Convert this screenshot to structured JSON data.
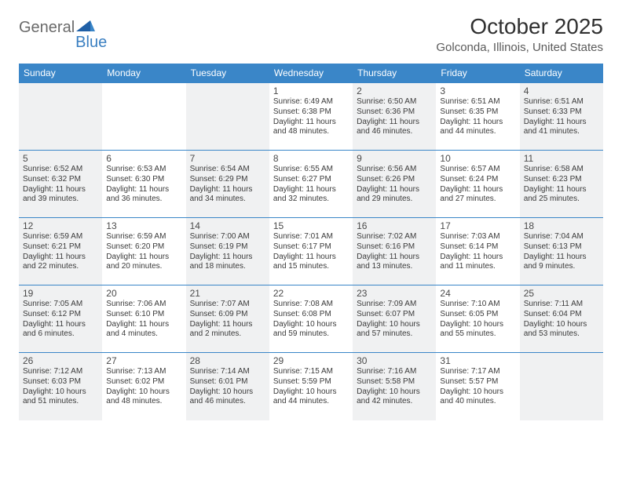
{
  "logo": {
    "text1": "General",
    "text2": "Blue"
  },
  "title": "October 2025",
  "location": "Golconda, Illinois, United States",
  "colors": {
    "header_bg": "#3a86c8",
    "header_text": "#ffffff",
    "shaded_bg": "#f0f1f2",
    "border": "#3a86c8",
    "logo_gray": "#6a6a6a",
    "logo_blue": "#3a7fc1"
  },
  "daysOfWeek": [
    "Sunday",
    "Monday",
    "Tuesday",
    "Wednesday",
    "Thursday",
    "Friday",
    "Saturday"
  ],
  "weeks": [
    [
      {
        "shaded": true
      },
      {
        "shaded": false
      },
      {
        "shaded": true
      },
      {
        "day": "1",
        "sunrise": "Sunrise: 6:49 AM",
        "sunset": "Sunset: 6:38 PM",
        "daylight": "Daylight: 11 hours and 48 minutes.",
        "shaded": false
      },
      {
        "day": "2",
        "sunrise": "Sunrise: 6:50 AM",
        "sunset": "Sunset: 6:36 PM",
        "daylight": "Daylight: 11 hours and 46 minutes.",
        "shaded": true
      },
      {
        "day": "3",
        "sunrise": "Sunrise: 6:51 AM",
        "sunset": "Sunset: 6:35 PM",
        "daylight": "Daylight: 11 hours and 44 minutes.",
        "shaded": false
      },
      {
        "day": "4",
        "sunrise": "Sunrise: 6:51 AM",
        "sunset": "Sunset: 6:33 PM",
        "daylight": "Daylight: 11 hours and 41 minutes.",
        "shaded": true
      }
    ],
    [
      {
        "day": "5",
        "sunrise": "Sunrise: 6:52 AM",
        "sunset": "Sunset: 6:32 PM",
        "daylight": "Daylight: 11 hours and 39 minutes.",
        "shaded": true
      },
      {
        "day": "6",
        "sunrise": "Sunrise: 6:53 AM",
        "sunset": "Sunset: 6:30 PM",
        "daylight": "Daylight: 11 hours and 36 minutes.",
        "shaded": false
      },
      {
        "day": "7",
        "sunrise": "Sunrise: 6:54 AM",
        "sunset": "Sunset: 6:29 PM",
        "daylight": "Daylight: 11 hours and 34 minutes.",
        "shaded": true
      },
      {
        "day": "8",
        "sunrise": "Sunrise: 6:55 AM",
        "sunset": "Sunset: 6:27 PM",
        "daylight": "Daylight: 11 hours and 32 minutes.",
        "shaded": false
      },
      {
        "day": "9",
        "sunrise": "Sunrise: 6:56 AM",
        "sunset": "Sunset: 6:26 PM",
        "daylight": "Daylight: 11 hours and 29 minutes.",
        "shaded": true
      },
      {
        "day": "10",
        "sunrise": "Sunrise: 6:57 AM",
        "sunset": "Sunset: 6:24 PM",
        "daylight": "Daylight: 11 hours and 27 minutes.",
        "shaded": false
      },
      {
        "day": "11",
        "sunrise": "Sunrise: 6:58 AM",
        "sunset": "Sunset: 6:23 PM",
        "daylight": "Daylight: 11 hours and 25 minutes.",
        "shaded": true
      }
    ],
    [
      {
        "day": "12",
        "sunrise": "Sunrise: 6:59 AM",
        "sunset": "Sunset: 6:21 PM",
        "daylight": "Daylight: 11 hours and 22 minutes.",
        "shaded": true
      },
      {
        "day": "13",
        "sunrise": "Sunrise: 6:59 AM",
        "sunset": "Sunset: 6:20 PM",
        "daylight": "Daylight: 11 hours and 20 minutes.",
        "shaded": false
      },
      {
        "day": "14",
        "sunrise": "Sunrise: 7:00 AM",
        "sunset": "Sunset: 6:19 PM",
        "daylight": "Daylight: 11 hours and 18 minutes.",
        "shaded": true
      },
      {
        "day": "15",
        "sunrise": "Sunrise: 7:01 AM",
        "sunset": "Sunset: 6:17 PM",
        "daylight": "Daylight: 11 hours and 15 minutes.",
        "shaded": false
      },
      {
        "day": "16",
        "sunrise": "Sunrise: 7:02 AM",
        "sunset": "Sunset: 6:16 PM",
        "daylight": "Daylight: 11 hours and 13 minutes.",
        "shaded": true
      },
      {
        "day": "17",
        "sunrise": "Sunrise: 7:03 AM",
        "sunset": "Sunset: 6:14 PM",
        "daylight": "Daylight: 11 hours and 11 minutes.",
        "shaded": false
      },
      {
        "day": "18",
        "sunrise": "Sunrise: 7:04 AM",
        "sunset": "Sunset: 6:13 PM",
        "daylight": "Daylight: 11 hours and 9 minutes.",
        "shaded": true
      }
    ],
    [
      {
        "day": "19",
        "sunrise": "Sunrise: 7:05 AM",
        "sunset": "Sunset: 6:12 PM",
        "daylight": "Daylight: 11 hours and 6 minutes.",
        "shaded": true
      },
      {
        "day": "20",
        "sunrise": "Sunrise: 7:06 AM",
        "sunset": "Sunset: 6:10 PM",
        "daylight": "Daylight: 11 hours and 4 minutes.",
        "shaded": false
      },
      {
        "day": "21",
        "sunrise": "Sunrise: 7:07 AM",
        "sunset": "Sunset: 6:09 PM",
        "daylight": "Daylight: 11 hours and 2 minutes.",
        "shaded": true
      },
      {
        "day": "22",
        "sunrise": "Sunrise: 7:08 AM",
        "sunset": "Sunset: 6:08 PM",
        "daylight": "Daylight: 10 hours and 59 minutes.",
        "shaded": false
      },
      {
        "day": "23",
        "sunrise": "Sunrise: 7:09 AM",
        "sunset": "Sunset: 6:07 PM",
        "daylight": "Daylight: 10 hours and 57 minutes.",
        "shaded": true
      },
      {
        "day": "24",
        "sunrise": "Sunrise: 7:10 AM",
        "sunset": "Sunset: 6:05 PM",
        "daylight": "Daylight: 10 hours and 55 minutes.",
        "shaded": false
      },
      {
        "day": "25",
        "sunrise": "Sunrise: 7:11 AM",
        "sunset": "Sunset: 6:04 PM",
        "daylight": "Daylight: 10 hours and 53 minutes.",
        "shaded": true
      }
    ],
    [
      {
        "day": "26",
        "sunrise": "Sunrise: 7:12 AM",
        "sunset": "Sunset: 6:03 PM",
        "daylight": "Daylight: 10 hours and 51 minutes.",
        "shaded": true
      },
      {
        "day": "27",
        "sunrise": "Sunrise: 7:13 AM",
        "sunset": "Sunset: 6:02 PM",
        "daylight": "Daylight: 10 hours and 48 minutes.",
        "shaded": false
      },
      {
        "day": "28",
        "sunrise": "Sunrise: 7:14 AM",
        "sunset": "Sunset: 6:01 PM",
        "daylight": "Daylight: 10 hours and 46 minutes.",
        "shaded": true
      },
      {
        "day": "29",
        "sunrise": "Sunrise: 7:15 AM",
        "sunset": "Sunset: 5:59 PM",
        "daylight": "Daylight: 10 hours and 44 minutes.",
        "shaded": false
      },
      {
        "day": "30",
        "sunrise": "Sunrise: 7:16 AM",
        "sunset": "Sunset: 5:58 PM",
        "daylight": "Daylight: 10 hours and 42 minutes.",
        "shaded": true
      },
      {
        "day": "31",
        "sunrise": "Sunrise: 7:17 AM",
        "sunset": "Sunset: 5:57 PM",
        "daylight": "Daylight: 10 hours and 40 minutes.",
        "shaded": false
      },
      {
        "shaded": true
      }
    ]
  ]
}
